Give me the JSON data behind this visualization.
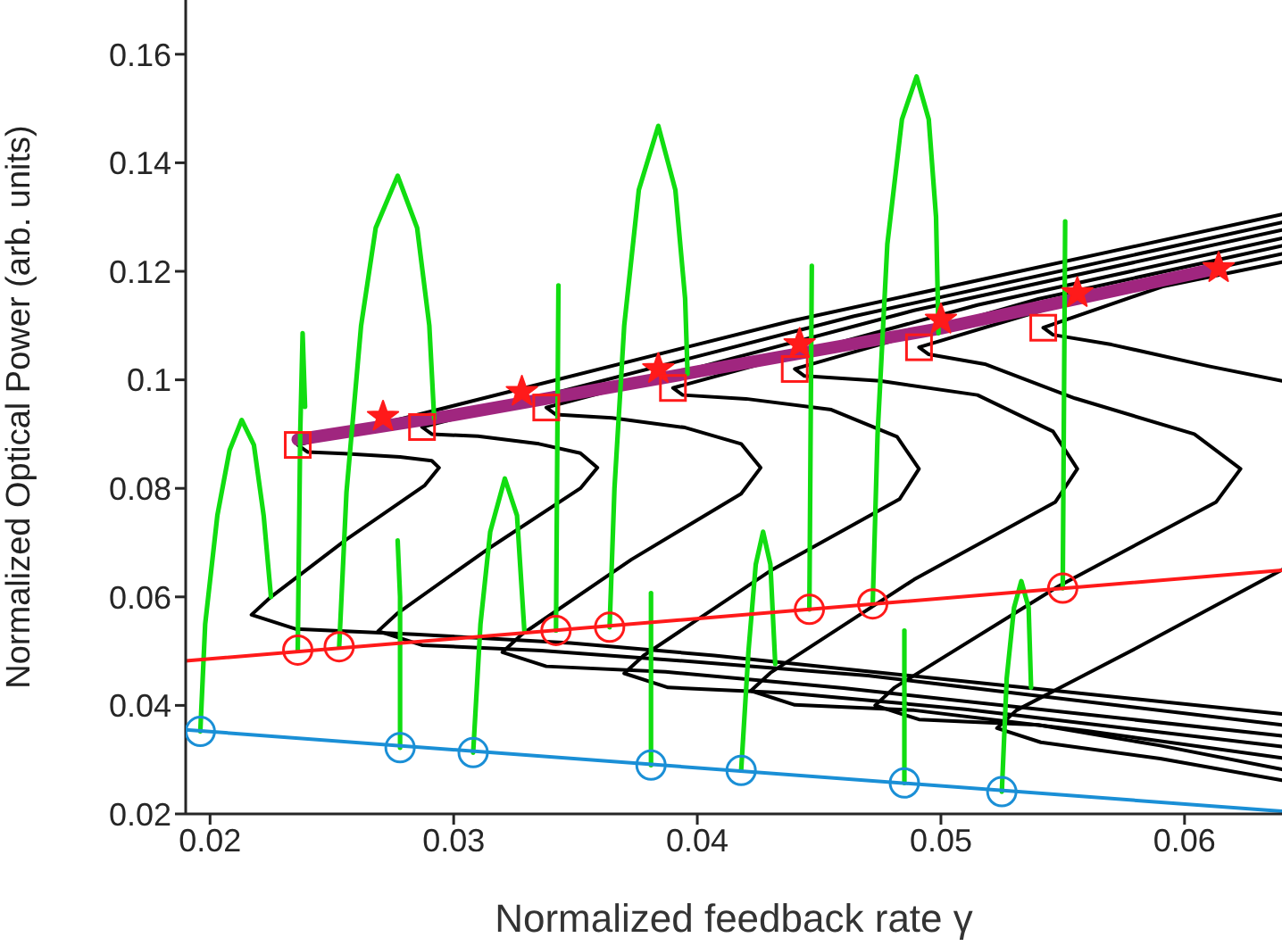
{
  "chart_data": {
    "type": "line",
    "xlabel": "Normalized feedback rate γ",
    "ylabel": "Normalized Optical Power (arb. units)",
    "xlim": [
      0.019,
      0.064
    ],
    "ylim": [
      0.02,
      0.17
    ],
    "xticks": [
      0.02,
      0.03,
      0.04,
      0.05,
      0.06
    ],
    "yticks": [
      0.02,
      0.04,
      0.06,
      0.08,
      0.1,
      0.12,
      0.14,
      0.16
    ],
    "grid": false,
    "legend": false,
    "series": [
      {
        "color": "#000000",
        "marker": "none",
        "x": [
          0.064,
          0.0438,
          0.0236,
          0.024,
          0.0255,
          0.0278,
          0.0291,
          0.0294,
          0.0288,
          0.0256,
          0.0225,
          0.0217,
          0.0235,
          0.0284,
          0.0348,
          0.0407,
          0.064
        ],
        "values": [
          0.1305,
          0.1108,
          0.088,
          0.0867,
          0.0864,
          0.0858,
          0.0851,
          0.0838,
          0.0805,
          0.0706,
          0.06,
          0.0567,
          0.0541,
          0.0531,
          0.0515,
          0.0492,
          0.0384
        ]
      },
      {
        "color": "#000000",
        "marker": "none",
        "x": [
          0.064,
          0.0464,
          0.0287,
          0.0291,
          0.031,
          0.0335,
          0.0352,
          0.0359,
          0.0352,
          0.0314,
          0.0277,
          0.0269,
          0.0287,
          0.0336,
          0.04,
          0.047,
          0.064
        ],
        "values": [
          0.129,
          0.1117,
          0.0913,
          0.09,
          0.0896,
          0.0882,
          0.0865,
          0.0838,
          0.08,
          0.0688,
          0.057,
          0.0537,
          0.0511,
          0.0501,
          0.048,
          0.0455,
          0.0364
        ]
      },
      {
        "color": "#000000",
        "marker": "none",
        "x": [
          0.064,
          0.0489,
          0.0338,
          0.0342,
          0.0365,
          0.0395,
          0.0418,
          0.0426,
          0.0418,
          0.0373,
          0.0328,
          0.032,
          0.0338,
          0.0387,
          0.046,
          0.064
        ],
        "values": [
          0.1276,
          0.1128,
          0.0949,
          0.0936,
          0.093,
          0.0912,
          0.0882,
          0.0838,
          0.079,
          0.0669,
          0.0531,
          0.0498,
          0.0472,
          0.0462,
          0.0432,
          0.0344
        ]
      },
      {
        "color": "#000000",
        "marker": "none",
        "x": [
          0.064,
          0.0515,
          0.039,
          0.0394,
          0.042,
          0.0455,
          0.0482,
          0.0491,
          0.0483,
          0.043,
          0.0378,
          0.037,
          0.0388,
          0.0437,
          0.051,
          0.064
        ],
        "values": [
          0.1261,
          0.1138,
          0.0985,
          0.0972,
          0.0965,
          0.0945,
          0.0895,
          0.0836,
          0.078,
          0.0648,
          0.0492,
          0.0459,
          0.0433,
          0.0423,
          0.0393,
          0.0324
        ]
      },
      {
        "color": "#000000",
        "marker": "none",
        "x": [
          0.064,
          0.054,
          0.044,
          0.0444,
          0.0475,
          0.0515,
          0.0546,
          0.0556,
          0.0547,
          0.0489,
          0.043,
          0.0422,
          0.044,
          0.0489,
          0.056,
          0.064
        ],
        "values": [
          0.1247,
          0.1149,
          0.102,
          0.1007,
          0.0998,
          0.0972,
          0.0905,
          0.0836,
          0.0775,
          0.0632,
          0.046,
          0.0427,
          0.0401,
          0.0391,
          0.0353,
          0.0303
        ]
      },
      {
        "color": "#000000",
        "marker": "none",
        "x": [
          0.064,
          0.0566,
          0.0491,
          0.0495,
          0.0518,
          0.0555,
          0.0604,
          0.0623,
          0.0613,
          0.0548,
          0.0481,
          0.0473,
          0.0491,
          0.054,
          0.059,
          0.064
        ],
        "values": [
          0.1232,
          0.1161,
          0.106,
          0.1047,
          0.1029,
          0.0966,
          0.09,
          0.0836,
          0.0775,
          0.0619,
          0.0433,
          0.04,
          0.0374,
          0.0364,
          0.0326,
          0.0282
        ]
      },
      {
        "color": "#000000",
        "marker": "none",
        "x": [
          0.064,
          0.0591,
          0.0542,
          0.0546,
          0.057,
          0.061,
          0.064
        ],
        "values": [
          0.1217,
          0.1172,
          0.1096,
          0.1083,
          0.1065,
          0.1025,
          0.0998
        ]
      },
      {
        "color": "#000000",
        "marker": "none",
        "x": [
          0.064,
          0.058,
          0.0531,
          0.0523,
          0.0541,
          0.059,
          0.064
        ],
        "values": [
          0.065,
          0.0505,
          0.0391,
          0.0358,
          0.0332,
          0.0302,
          0.0262
        ]
      },
      {
        "color": "#a0267f",
        "marker": "none",
        "x": [
          0.0236,
          0.03,
          0.04,
          0.05,
          0.0614
        ],
        "values": [
          0.089,
          0.0935,
          0.1015,
          0.1095,
          0.1206
        ]
      },
      {
        "color": "#11dd11",
        "marker": "none",
        "x": [
          0.0196,
          0.0198,
          0.0203,
          0.0208,
          0.0213,
          0.0218,
          0.0222,
          0.0225
        ],
        "values": [
          0.0352,
          0.055,
          0.075,
          0.087,
          0.0926,
          0.088,
          0.075,
          0.06
        ]
      },
      {
        "color": "#11dd11",
        "marker": "none",
        "x": [
          0.0236,
          0.0237,
          0.0238,
          0.0239
        ],
        "values": [
          0.0502,
          0.09,
          0.1086,
          0.095
        ]
      },
      {
        "color": "#11dd11",
        "marker": "none",
        "x": [
          0.0253,
          0.0256,
          0.0262,
          0.0268,
          0.0277,
          0.0285,
          0.029,
          0.0292
        ],
        "values": [
          0.0508,
          0.0793,
          0.11,
          0.128,
          0.1376,
          0.128,
          0.11,
          0.0929
        ]
      },
      {
        "color": "#11dd11",
        "marker": "none",
        "x": [
          0.0278,
          0.0278,
          0.0277
        ],
        "values": [
          0.0322,
          0.06,
          0.0704
        ]
      },
      {
        "color": "#11dd11",
        "marker": "none",
        "x": [
          0.0308,
          0.0311,
          0.0315,
          0.0321,
          0.0326,
          0.0329
        ],
        "values": [
          0.0313,
          0.055,
          0.072,
          0.0818,
          0.075,
          0.0538
        ]
      },
      {
        "color": "#11dd11",
        "marker": "none",
        "x": [
          0.0342,
          0.0343
        ],
        "values": [
          0.0538,
          0.1174
        ]
      },
      {
        "color": "#11dd11",
        "marker": "none",
        "x": [
          0.0364,
          0.0366,
          0.037,
          0.0376,
          0.0384,
          0.0391,
          0.0395,
          0.0396
        ],
        "values": [
          0.0544,
          0.08,
          0.11,
          0.135,
          0.1468,
          0.135,
          0.115,
          0.1011
        ]
      },
      {
        "color": "#11dd11",
        "marker": "none",
        "x": [
          0.0381,
          0.0381
        ],
        "values": [
          0.029,
          0.0607
        ]
      },
      {
        "color": "#11dd11",
        "marker": "none",
        "x": [
          0.0418,
          0.0421,
          0.0424,
          0.0427,
          0.043,
          0.0432
        ],
        "values": [
          0.028,
          0.05,
          0.066,
          0.072,
          0.066,
          0.0476
        ]
      },
      {
        "color": "#11dd11",
        "marker": "none",
        "x": [
          0.0446,
          0.0447
        ],
        "values": [
          0.0577,
          0.121
        ]
      },
      {
        "color": "#11dd11",
        "marker": "none",
        "x": [
          0.0472,
          0.0474,
          0.0478,
          0.0484,
          0.049,
          0.0495,
          0.0498,
          0.0499
        ],
        "values": [
          0.0587,
          0.09,
          0.125,
          0.148,
          0.1559,
          0.148,
          0.13,
          0.1086
        ]
      },
      {
        "color": "#11dd11",
        "marker": "none",
        "x": [
          0.0485,
          0.0485
        ],
        "values": [
          0.0257,
          0.0538
        ]
      },
      {
        "color": "#11dd11",
        "marker": "none",
        "x": [
          0.0525,
          0.0527,
          0.053,
          0.0533,
          0.0536,
          0.0537
        ],
        "values": [
          0.0241,
          0.045,
          0.058,
          0.0629,
          0.058,
          0.0433
        ]
      },
      {
        "color": "#11dd11",
        "marker": "none",
        "x": [
          0.055,
          0.0551
        ],
        "values": [
          0.0616,
          0.1292
        ]
      },
      {
        "color": "#ff1a1a",
        "marker": "none",
        "x": [
          0.019,
          0.064
        ],
        "values": [
          0.0482,
          0.0649
        ]
      },
      {
        "color": "#1a8fd6",
        "marker": "none",
        "x": [
          0.019,
          0.064
        ],
        "values": [
          0.0355,
          0.0205
        ]
      },
      {
        "type": "scatter",
        "color": "#ff1a1a",
        "marker": "star",
        "x": [
          0.0271,
          0.0328,
          0.0384,
          0.0442,
          0.05,
          0.0556,
          0.0614
        ],
        "values": [
          0.0932,
          0.0978,
          0.102,
          0.1066,
          0.1111,
          0.116,
          0.1206
        ]
      },
      {
        "type": "scatter",
        "color": "#ff1a1a",
        "marker": "square",
        "x": [
          0.0236,
          0.0287,
          0.0338,
          0.039,
          0.044,
          0.0491,
          0.0542
        ],
        "values": [
          0.088,
          0.0913,
          0.0949,
          0.0985,
          0.102,
          0.106,
          0.1096
        ]
      },
      {
        "type": "scatter",
        "color": "#ff1a1a",
        "marker": "circle",
        "x": [
          0.0236,
          0.0253,
          0.0342,
          0.0364,
          0.0446,
          0.0472,
          0.055
        ],
        "values": [
          0.0502,
          0.0508,
          0.0538,
          0.0544,
          0.0577,
          0.0587,
          0.0616
        ]
      },
      {
        "type": "scatter",
        "color": "#1a8fd6",
        "marker": "circle",
        "x": [
          0.0196,
          0.0278,
          0.0308,
          0.0381,
          0.0418,
          0.0485,
          0.0525
        ],
        "values": [
          0.0352,
          0.0322,
          0.0313,
          0.029,
          0.028,
          0.0257,
          0.0241
        ]
      }
    ]
  }
}
